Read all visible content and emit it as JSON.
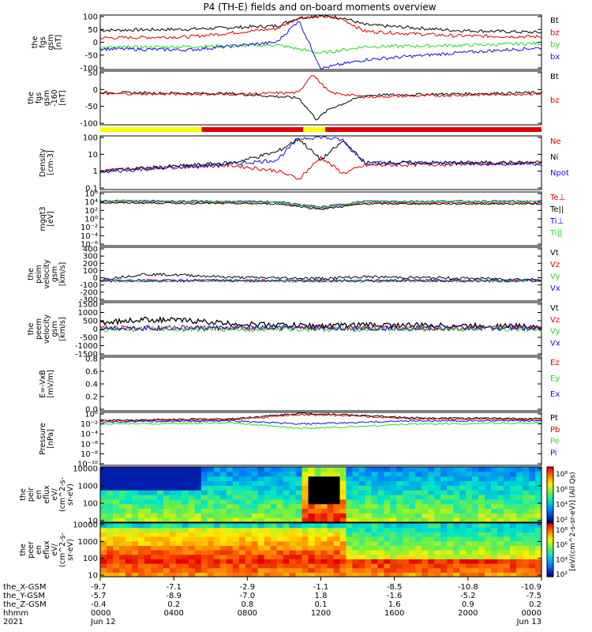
{
  "title": "P4 (TH-E) fields and on-board moments overview",
  "colors": {
    "black": "#000000",
    "red": "#e00000",
    "green": "#22dd22",
    "blue": "#1010e0",
    "yellow": "#ffff00"
  },
  "panels": [
    {
      "id": "fgs",
      "ylabel": [
        "the",
        "fgs",
        "gsm",
        "[nT]"
      ],
      "ticks": [
        "100",
        "50",
        "0",
        "-50",
        "-100"
      ],
      "legend": [
        "Bt",
        "bz",
        "by",
        "bx"
      ],
      "legend_colors": [
        "black",
        "red",
        "green",
        "blue"
      ]
    },
    {
      "id": "fgs-dsl",
      "ylabel": [
        "the",
        "fgs",
        "gsm",
        "-160",
        "[nT]"
      ],
      "ticks": [
        "50",
        "0",
        "-50",
        "-100"
      ],
      "legend": [
        "Bt",
        "bz"
      ],
      "legend_colors": [
        "black",
        "red"
      ]
    },
    {
      "id": "density",
      "ylabel": [
        "Density",
        "[cm-3]"
      ],
      "ticks": [
        "100",
        "10",
        "1",
        "0.1"
      ],
      "legend": [
        "Ne",
        "Ni",
        "Npot"
      ],
      "legend_colors": [
        "red",
        "black",
        "blue"
      ]
    },
    {
      "id": "temp",
      "ylabel": [
        "mgqt3",
        "[eV]"
      ],
      "ticks": [
        "10⁶",
        "10⁴",
        "10²",
        "10⁰",
        "10⁻²",
        "10⁻⁴",
        "10⁻⁶"
      ],
      "legend": [
        "Te⊥",
        "Te||",
        "Ti⊥",
        "Ti||"
      ],
      "legend_colors": [
        "red",
        "black",
        "blue",
        "green"
      ]
    },
    {
      "id": "peim",
      "ylabel": [
        "the",
        "peim",
        "velocity",
        "gsm",
        "[km/s]"
      ],
      "ticks": [
        "400",
        "300",
        "200",
        "100",
        "0",
        "-100",
        "-200",
        "-300"
      ],
      "legend": [
        "Vt",
        "Vz",
        "Vy",
        "Vx"
      ],
      "legend_colors": [
        "black",
        "red",
        "green",
        "blue"
      ]
    },
    {
      "id": "peem",
      "ylabel": [
        "the",
        "peem",
        "velocity",
        "gsm",
        "[km/s]"
      ],
      "ticks": [
        "1500",
        "1000",
        "500",
        "0",
        "-500",
        "-1000",
        "-1500"
      ],
      "legend": [
        "Vt",
        "Vz",
        "Vy",
        "Vx"
      ],
      "legend_colors": [
        "black",
        "red",
        "green",
        "blue"
      ]
    },
    {
      "id": "efield",
      "ylabel": [
        "E=-VxB",
        "[mV/m]"
      ],
      "ticks": [
        "0.8",
        "0.6",
        "0.4",
        "0.2",
        "0.0"
      ],
      "legend": [
        "Ez",
        "Ey",
        "Ex"
      ],
      "legend_colors": [
        "red",
        "green",
        "blue"
      ]
    },
    {
      "id": "pressure",
      "ylabel": [
        "Pressure",
        "[nPa]"
      ],
      "ticks": [
        "10⁰",
        "10⁻²",
        "10⁻⁴",
        "10⁻⁶",
        "10⁻⁸",
        "10⁻¹⁰"
      ],
      "legend": [
        "Pt",
        "Pb",
        "Pe",
        "Pi"
      ],
      "legend_colors": [
        "black",
        "red",
        "green",
        "blue"
      ]
    },
    {
      "id": "peir",
      "ylabel": [
        "the",
        "peir",
        "en",
        "eflux",
        "eV/",
        "(cm^2-s-",
        "sr-eV)"
      ],
      "ticks": [
        "10000",
        "1000",
        "100",
        "10"
      ],
      "legend": [],
      "legend_colors": []
    },
    {
      "id": "peer",
      "ylabel": [
        "the",
        "peer",
        "en",
        "eflux",
        "eV/",
        "(cm^2-s-",
        "sr-eV)"
      ],
      "ticks": [
        "10000",
        "1000",
        "100",
        "10"
      ],
      "legend": [],
      "legend_colors": []
    }
  ],
  "colorbar": {
    "top_ticks": [
      "10⁸",
      "10⁶",
      "10⁴",
      "10²"
    ],
    "bottom_ticks": [
      "10⁸",
      "10⁶",
      "10⁴",
      "10²"
    ],
    "label": "[eV/(cm^2-s-sr-eV)] (All Qs)"
  },
  "xaxis": {
    "row_labels": [
      "the_X-GSM",
      "the_Y-GSM",
      "the_Z-GSM",
      "hhmm",
      "2021"
    ],
    "columns": [
      {
        "x": "-9.7",
        "y": "-5.7",
        "z": "-0.4",
        "hhmm": "0000",
        "date": "Jun 12"
      },
      {
        "x": "-7.1",
        "y": "-8.9",
        "z": "0.2",
        "hhmm": "0400",
        "date": ""
      },
      {
        "x": "-2.9",
        "y": "-7.0",
        "z": "0.8",
        "hhmm": "0800",
        "date": ""
      },
      {
        "x": "-1.1",
        "y": "1.8",
        "z": "0.1",
        "hhmm": "1200",
        "date": ""
      },
      {
        "x": "-8.5",
        "y": "-1.6",
        "z": "1.6",
        "hhmm": "1600",
        "date": ""
      },
      {
        "x": "-10.8",
        "y": "-5.2",
        "z": "0.9",
        "hhmm": "2000",
        "date": ""
      },
      {
        "x": "-10.9",
        "y": "-7.5",
        "z": "0.2",
        "hhmm": "0000",
        "date": "Jun 13"
      }
    ]
  },
  "chart_data": {
    "type": "line",
    "title": "P4 (TH-E) fields and on-board moments overview",
    "x": [
      "0000",
      "0400",
      "0800",
      "1200",
      "1600",
      "2000",
      "0000"
    ],
    "series": [
      {
        "name": "Bt",
        "panel": "fgs",
        "color": "black",
        "values": [
          35,
          40,
          50,
          95,
          45,
          20,
          15
        ]
      },
      {
        "name": "bz",
        "panel": "fgs",
        "color": "red",
        "values": [
          5,
          10,
          30,
          90,
          30,
          15,
          10
        ]
      },
      {
        "name": "by",
        "panel": "fgs",
        "color": "green",
        "values": [
          -15,
          -5,
          -10,
          -40,
          -15,
          -10,
          0
        ]
      },
      {
        "name": "bx",
        "panel": "fgs",
        "color": "blue",
        "values": [
          -20,
          -30,
          -10,
          -100,
          -70,
          -45,
          -15
        ]
      },
      {
        "name": "Ne",
        "panel": "density",
        "color": "red",
        "values": [
          0.5,
          0.8,
          0.3,
          0.2,
          1,
          1,
          1
        ]
      },
      {
        "name": "Ni",
        "panel": "density",
        "color": "black",
        "values": [
          0.5,
          1,
          10,
          100,
          1,
          1,
          1
        ]
      },
      {
        "name": "Npot",
        "panel": "density",
        "color": "blue",
        "values": [
          0.5,
          1,
          3,
          100,
          1,
          1,
          1
        ]
      }
    ]
  }
}
